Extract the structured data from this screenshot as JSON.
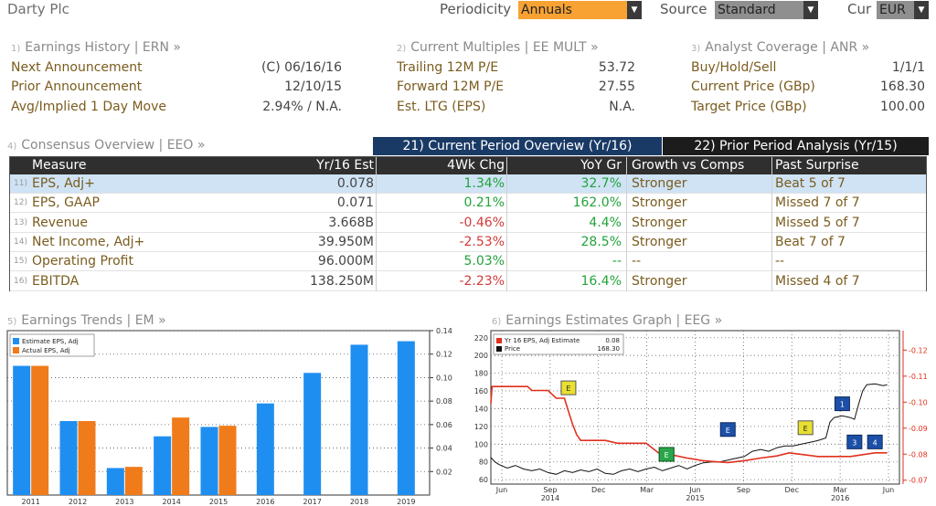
{
  "topbar": {
    "company": "Darty Plc",
    "periodicity_label": "Periodicity",
    "periodicity_value": "Annuals",
    "source_label": "Source",
    "source_value": "Standard",
    "cur_label": "Cur",
    "cur_value": "EUR"
  },
  "earnings_history": {
    "num": "1)",
    "title": "Earnings History | ERN »",
    "rows": [
      {
        "label": "Next Announcement",
        "value": "(C)  06/16/16"
      },
      {
        "label": "Prior Announcement",
        "value": "12/10/15"
      },
      {
        "label": "Avg/Implied 1 Day Move",
        "value": "2.94% / N.A."
      }
    ]
  },
  "current_multiples": {
    "num": "2)",
    "title": "Current Multiples | EE MULT »",
    "rows": [
      {
        "label": "Trailing 12M P/E",
        "value": "53.72"
      },
      {
        "label": "Forward 12M P/E",
        "value": "27.55"
      },
      {
        "label": "Est. LTG (EPS)",
        "value": "N.A."
      }
    ]
  },
  "analyst_coverage": {
    "num": "3)",
    "title": "Analyst Coverage | ANR »",
    "rows": [
      {
        "label": "Buy/Hold/Sell",
        "value": "1/1/1"
      },
      {
        "label": "Current Price (GBp)",
        "value": "168.30"
      },
      {
        "label": "Target Price (GBp)",
        "value": "100.00"
      }
    ]
  },
  "consensus": {
    "num": "4)",
    "title": "Consensus Overview | EEO »",
    "tab_current": "21) Current Period Overview (Yr/16)",
    "tab_prior": "22) Prior Period Analysis (Yr/15)",
    "columns": [
      "Measure",
      "Yr/16 Est",
      "4Wk Chg",
      "YoY Gr",
      "Growth vs Comps",
      "Past Surprise"
    ],
    "rows": [
      {
        "num": "11)",
        "measure": "EPS, Adj+",
        "est": "0.078",
        "chg": "1.34%",
        "yoy": "32.7%",
        "comps": "Stronger",
        "surprise": "Beat 5 of 7"
      },
      {
        "num": "12)",
        "measure": "EPS, GAAP",
        "est": "0.071",
        "chg": "0.21%",
        "yoy": "162.0%",
        "comps": "Stronger",
        "surprise": "Missed 7 of 7"
      },
      {
        "num": "13)",
        "measure": "Revenue",
        "est": "3.668B",
        "chg": "-0.46%",
        "yoy": "4.4%",
        "comps": "Stronger",
        "surprise": "Missed 5 of 7"
      },
      {
        "num": "14)",
        "measure": "Net Income, Adj+",
        "est": "39.950M",
        "chg": "-2.53%",
        "yoy": "28.5%",
        "comps": "Stronger",
        "surprise": "Beat 7 of 7"
      },
      {
        "num": "15)",
        "measure": "Operating Profit",
        "est": "96.000M",
        "chg": "5.03%",
        "yoy": "--",
        "comps": "--",
        "surprise": "--"
      },
      {
        "num": "16)",
        "measure": "EBITDA",
        "est": "138.250M",
        "chg": "-2.23%",
        "yoy": "16.4%",
        "comps": "Stronger",
        "surprise": "Missed 4 of 7"
      }
    ]
  },
  "earnings_trends": {
    "num": "5)",
    "title": "Earnings Trends | EM »"
  },
  "earnings_graph": {
    "num": "6)",
    "title": "Earnings Estimates Graph | EEG »"
  },
  "colors": {
    "estimate_bar": "#1f8ef1",
    "actual_bar": "#f07b1a",
    "tab_active": "#1a3a66",
    "tab_inactive": "#1c1c1c",
    "dropdown_orange": "#f7a233",
    "estimate_line": "#e0301e",
    "price_line": "#111111"
  },
  "chart_data": [
    {
      "type": "bar",
      "categories": [
        "2011",
        "2012",
        "2013",
        "2014",
        "2015",
        "2016",
        "2017",
        "2018",
        "2019"
      ],
      "series": [
        {
          "name": "Estimate EPS, Adj",
          "values": [
            0.11,
            0.063,
            0.023,
            0.05,
            0.058,
            0.078,
            0.104,
            0.128,
            0.131
          ]
        },
        {
          "name": "Actual EPS, Adj",
          "values": [
            0.11,
            0.063,
            0.024,
            0.066,
            0.059,
            null,
            null,
            null,
            null
          ]
        }
      ],
      "ylim": [
        0,
        0.14
      ],
      "yticks": [
        "0.02",
        "0.04",
        "0.06",
        "0.08",
        "0.10",
        "0.12",
        "0.14"
      ],
      "legend": "top-left"
    },
    {
      "type": "line",
      "x_ticks": [
        "Jun",
        "Sep",
        "Dec",
        "Mar",
        "Jun",
        "Sep",
        "Dec",
        "Mar",
        "Jun"
      ],
      "x_years": [
        "2014",
        "2015",
        "2016"
      ],
      "left_ticks": [
        "60",
        "80",
        "100",
        "120",
        "140",
        "160",
        "180",
        "200",
        "220"
      ],
      "left_lim": [
        55,
        228
      ],
      "right_ticks": [
        "0.07",
        "0.08",
        "0.09",
        "0.10",
        "0.11",
        "0.12"
      ],
      "right_lim": [
        0.0685,
        0.1275
      ],
      "legend": "top-left",
      "legend_estimate_value": "0.08",
      "legend_price_value": "168.30",
      "series": [
        {
          "name": "Yr 16 EPS, Adj Estimate",
          "axis": "right",
          "points": [
            [
              0,
              0.0995
            ],
            [
              0.3,
              0.106
            ],
            [
              4,
              0.106
            ],
            [
              9,
              0.106
            ],
            [
              10,
              0.1045
            ],
            [
              14,
              0.1045
            ],
            [
              16,
              0.1015
            ],
            [
              18,
              0.1015
            ],
            [
              19,
              0.0965
            ],
            [
              20,
              0.0915
            ],
            [
              21,
              0.0875
            ],
            [
              22,
              0.0853
            ],
            [
              28,
              0.0853
            ],
            [
              31,
              0.0842
            ],
            [
              38,
              0.0842
            ],
            [
              41,
              0.0805
            ],
            [
              45,
              0.0795
            ],
            [
              48,
              0.0785
            ],
            [
              52,
              0.0775
            ],
            [
              54,
              0.0772
            ],
            [
              58,
              0.0768
            ],
            [
              62,
              0.0775
            ],
            [
              66,
              0.0785
            ],
            [
              70,
              0.0793
            ],
            [
              73,
              0.0805
            ],
            [
              77,
              0.0797
            ],
            [
              80,
              0.0791
            ],
            [
              84,
              0.0791
            ],
            [
              88,
              0.0791
            ],
            [
              91,
              0.0798
            ],
            [
              94,
              0.0805
            ],
            [
              97,
              0.0805
            ]
          ]
        },
        {
          "name": "Price",
          "axis": "left",
          "points": [
            [
              0,
              85
            ],
            [
              1,
              80
            ],
            [
              2,
              77
            ],
            [
              4,
              73
            ],
            [
              6,
              76
            ],
            [
              8,
              72
            ],
            [
              10,
              70
            ],
            [
              12,
              72
            ],
            [
              14,
              68
            ],
            [
              16,
              66
            ],
            [
              18,
              70
            ],
            [
              20,
              68
            ],
            [
              22,
              71
            ],
            [
              24,
              69
            ],
            [
              26,
              72
            ],
            [
              28,
              67
            ],
            [
              30,
              66
            ],
            [
              32,
              70
            ],
            [
              34,
              72
            ],
            [
              36,
              69
            ],
            [
              38,
              72
            ],
            [
              40,
              74
            ],
            [
              42,
              70
            ],
            [
              44,
              73
            ],
            [
              46,
              76
            ],
            [
              48,
              72
            ],
            [
              50,
              76
            ],
            [
              52,
              79
            ],
            [
              54,
              80
            ],
            [
              56,
              80
            ],
            [
              58,
              82
            ],
            [
              60,
              84
            ],
            [
              62,
              86
            ],
            [
              64,
              92
            ],
            [
              66,
              94
            ],
            [
              68,
              92
            ],
            [
              70,
              96
            ],
            [
              72,
              98
            ],
            [
              74,
              98
            ],
            [
              76,
              100
            ],
            [
              78,
              102
            ],
            [
              80,
              104
            ],
            [
              82,
              107
            ],
            [
              83,
              125
            ],
            [
              84,
              130
            ],
            [
              86,
              132
            ],
            [
              88,
              130
            ],
            [
              89,
              128
            ],
            [
              90,
              145
            ],
            [
              91,
              160
            ],
            [
              92,
              167
            ],
            [
              94,
              168
            ],
            [
              96,
              166
            ],
            [
              97,
              167
            ]
          ]
        }
      ],
      "event_markers": [
        {
          "label": "E",
          "kind": "earnings",
          "x": 19,
          "y": 163
        },
        {
          "label": "E",
          "kind": "earnings",
          "x": 77,
          "y": 118
        },
        {
          "label": "E",
          "kind": "earnings",
          "x": 43,
          "y": 88
        },
        {
          "label": "E",
          "kind": "earnings-blue",
          "x": 58,
          "y": 116
        },
        {
          "label": "1",
          "kind": "analyst",
          "x": 86,
          "y": 145
        },
        {
          "label": "3",
          "kind": "analyst",
          "x": 89,
          "y": 102
        },
        {
          "label": "4",
          "kind": "analyst",
          "x": 94,
          "y": 102
        }
      ]
    }
  ]
}
